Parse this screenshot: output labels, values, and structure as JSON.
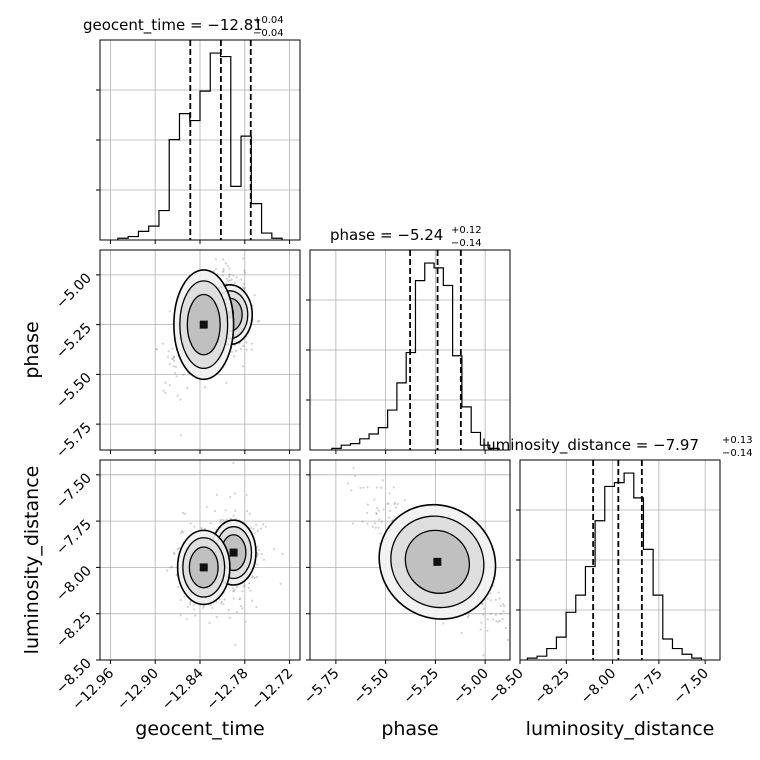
{
  "chart_data": {
    "type": "corner",
    "parameters": [
      "geocent_time",
      "phase",
      "luminosity_distance"
    ],
    "titles": [
      {
        "param": "geocent_time",
        "label": "geocent_time = ",
        "value": "−12.81",
        "plus": "+0.04",
        "minus": "−0.04"
      },
      {
        "param": "phase",
        "label": "phase = ",
        "value": "−5.24",
        "plus": "+0.12",
        "minus": "−0.14"
      },
      {
        "param": "luminosity_distance",
        "label": "luminosity_distance = ",
        "value": "−7.97",
        "plus": "+0.13",
        "minus": "−0.14"
      }
    ],
    "axes": {
      "geocent_time": {
        "range": [
          -12.974,
          -12.706
        ],
        "ticks": [
          -12.96,
          -12.9,
          -12.84,
          -12.78,
          -12.72
        ],
        "tick_labels": [
          "−12.96",
          "−12.90",
          "−12.84",
          "−12.78",
          "−12.72"
        ]
      },
      "phase": {
        "range": [
          -5.88,
          -4.875
        ],
        "ticks": [
          -5.75,
          -5.5,
          -5.25,
          -5.0
        ],
        "tick_labels": [
          "−5.75",
          "−5.50",
          "−5.25",
          "−5.00"
        ]
      },
      "luminosity_distance": {
        "range": [
          -8.5,
          -7.42
        ],
        "ticks": [
          -8.5,
          -8.25,
          -8.0,
          -7.75,
          -7.5
        ],
        "tick_labels": [
          "−8.50",
          "−8.25",
          "−8.00",
          "−7.75",
          "−7.50"
        ]
      }
    },
    "histograms": [
      {
        "param": "geocent_time",
        "range": [
          -12.95,
          -12.73
        ],
        "counts": [
          1,
          2,
          5,
          8,
          17,
          58,
          73,
          69,
          86,
          108,
          106,
          31,
          60,
          21,
          4,
          1
        ],
        "quantiles": [
          -12.853,
          -12.812,
          -12.772
        ]
      },
      {
        "param": "phase",
        "range": [
          -5.77,
          -4.93
        ],
        "counts": [
          1,
          3,
          4,
          7,
          10,
          14,
          25,
          42,
          61,
          106,
          117,
          114,
          103,
          59,
          27,
          11,
          3,
          1
        ],
        "quantiles": [
          -5.377,
          -5.239,
          -5.122
        ]
      },
      {
        "param": "luminosity_distance",
        "range": [
          -8.46,
          -7.52
        ],
        "counts": [
          1,
          2,
          6,
          12,
          25,
          34,
          49,
          73,
          91,
          93,
          98,
          85,
          58,
          34,
          11,
          6,
          3,
          1
        ],
        "quantiles": [
          -8.105,
          -7.969,
          -7.842
        ]
      }
    ],
    "grid": true
  }
}
